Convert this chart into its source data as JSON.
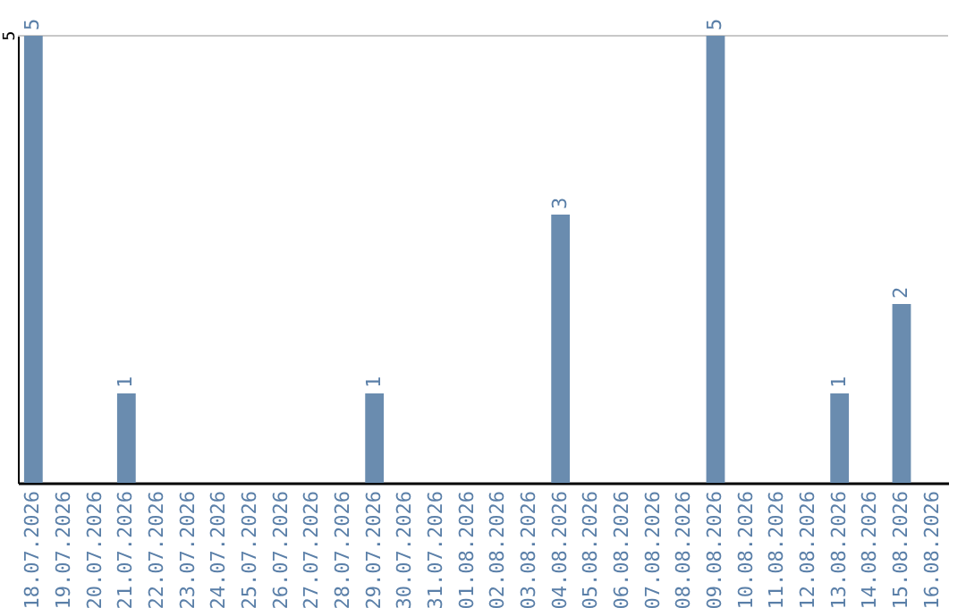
{
  "chart_data": {
    "type": "bar",
    "categories": [
      "18.07.2026",
      "19.07.2026",
      "20.07.2026",
      "21.07.2026",
      "22.07.2026",
      "23.07.2026",
      "24.07.2026",
      "25.07.2026",
      "26.07.2026",
      "27.07.2026",
      "28.07.2026",
      "29.07.2026",
      "30.07.2026",
      "31.07.2026",
      "01.08.2026",
      "02.08.2026",
      "03.08.2026",
      "04.08.2026",
      "05.08.2026",
      "06.08.2026",
      "07.08.2026",
      "08.08.2026",
      "09.08.2026",
      "10.08.2026",
      "11.08.2026",
      "12.08.2026",
      "13.08.2026",
      "14.08.2026",
      "15.08.2026",
      "16.08.2026"
    ],
    "values": [
      5,
      0,
      0,
      1,
      0,
      0,
      0,
      0,
      0,
      0,
      0,
      1,
      0,
      0,
      0,
      0,
      0,
      3,
      0,
      0,
      0,
      0,
      5,
      0,
      0,
      0,
      1,
      0,
      2,
      0
    ],
    "value_labels": [
      "5",
      null,
      null,
      "1",
      null,
      null,
      null,
      null,
      null,
      null,
      null,
      "1",
      null,
      null,
      null,
      null,
      null,
      "3",
      null,
      null,
      null,
      null,
      "5",
      null,
      null,
      null,
      "1",
      null,
      "2",
      null
    ],
    "color": "#6a8caf",
    "ylim": [
      0,
      5
    ],
    "ref_lines": [
      {
        "axis": "y",
        "value": 5,
        "label": "5",
        "color": "#c8c8c8"
      }
    ]
  }
}
